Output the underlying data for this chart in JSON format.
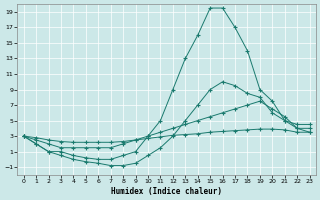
{
  "xlabel": "Humidex (Indice chaleur)",
  "bg_color": "#cce8e8",
  "grid_color": "#ffffff",
  "line_color": "#1a7a6e",
  "xlim": [
    -0.5,
    23.5
  ],
  "ylim": [
    -2,
    20
  ],
  "xticks": [
    0,
    1,
    2,
    3,
    4,
    5,
    6,
    7,
    8,
    9,
    10,
    11,
    12,
    13,
    14,
    15,
    16,
    17,
    18,
    19,
    20,
    21,
    22,
    23
  ],
  "yticks": [
    -1,
    1,
    3,
    5,
    7,
    9,
    11,
    13,
    15,
    17,
    19
  ],
  "line_top_x": [
    0,
    1,
    2,
    3,
    4,
    5,
    6,
    7,
    8,
    9,
    10,
    11,
    12,
    13,
    14,
    15,
    16,
    17,
    18,
    19,
    20,
    21,
    22,
    23
  ],
  "line_top_y": [
    3,
    2,
    1,
    1,
    0.5,
    0.2,
    0,
    0,
    0.5,
    1,
    3,
    5,
    9,
    13,
    16,
    19.5,
    19.5,
    17,
    14,
    9,
    7.5,
    5,
    4.5,
    4.5
  ],
  "line_mid_x": [
    0,
    1,
    2,
    3,
    4,
    5,
    6,
    7,
    8,
    9,
    10,
    11,
    12,
    13,
    14,
    15,
    16,
    17,
    18,
    19,
    20,
    21,
    22,
    23
  ],
  "line_mid_y": [
    3,
    2,
    1,
    0.5,
    0,
    -0.3,
    -0.5,
    -0.8,
    -0.8,
    -0.5,
    0.5,
    1.5,
    3,
    5,
    7,
    9,
    10,
    9.5,
    8.5,
    8,
    6,
    5,
    4,
    4
  ],
  "line_lo1_x": [
    0,
    1,
    2,
    3,
    4,
    5,
    6,
    7,
    8,
    9,
    10,
    11,
    12,
    13,
    14,
    15,
    16,
    17,
    18,
    19,
    20,
    21,
    22,
    23
  ],
  "line_lo1_y": [
    3,
    2.5,
    2,
    1.5,
    1.5,
    1.5,
    1.5,
    1.5,
    2,
    2.5,
    3,
    3.5,
    4,
    4.5,
    5,
    5.5,
    6,
    6.5,
    7,
    7.5,
    6.5,
    5.5,
    4,
    3.5
  ],
  "line_lo2_x": [
    0,
    1,
    2,
    3,
    4,
    5,
    6,
    7,
    8,
    9,
    10,
    11,
    12,
    13,
    14,
    15,
    16,
    17,
    18,
    19,
    20,
    21,
    22,
    23
  ],
  "line_lo2_y": [
    3,
    2.8,
    2.5,
    2.3,
    2.2,
    2.2,
    2.2,
    2.2,
    2.3,
    2.5,
    2.7,
    2.9,
    3.1,
    3.2,
    3.3,
    3.5,
    3.6,
    3.7,
    3.8,
    3.9,
    3.9,
    3.8,
    3.5,
    3.5
  ]
}
